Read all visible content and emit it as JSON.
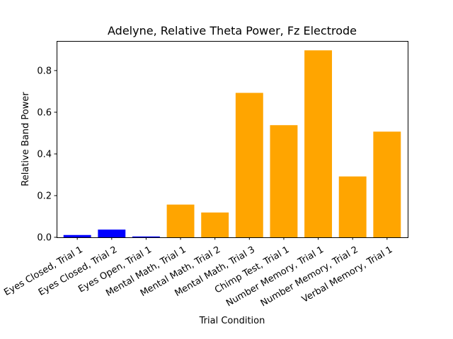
{
  "chart_data": {
    "type": "bar",
    "title": "Adelyne, Relative Theta Power, Fz Electrode",
    "xlabel": "Trial Condition",
    "ylabel": "Relative Band Power",
    "categories": [
      "Eyes Closed, Trial 1",
      "Eyes Closed, Trial 2",
      "Eyes Open, Trial 1",
      "Mental Math, Trial 1",
      "Mental Math, Trial 2",
      "Mental Math, Trial 3",
      "Chimp Test, Trial 1",
      "Number Memory, Trial 1",
      "Number Memory, Trial 2",
      "Verbal Memory, Trial 1"
    ],
    "values": [
      0.011,
      0.037,
      0.004,
      0.157,
      0.119,
      0.693,
      0.538,
      0.897,
      0.292,
      0.507
    ],
    "bar_colors": [
      "#0000ff",
      "#0000ff",
      "#0000ff",
      "#ffa500",
      "#ffa500",
      "#ffa500",
      "#ffa500",
      "#ffa500",
      "#ffa500",
      "#ffa500"
    ],
    "ylim": [
      0,
      0.942
    ],
    "yticks": [
      0.0,
      0.2,
      0.4,
      0.6,
      0.8
    ],
    "ytick_labels": [
      "0.0",
      "0.2",
      "0.4",
      "0.6",
      "0.8"
    ],
    "grid": false,
    "legend": "none"
  }
}
